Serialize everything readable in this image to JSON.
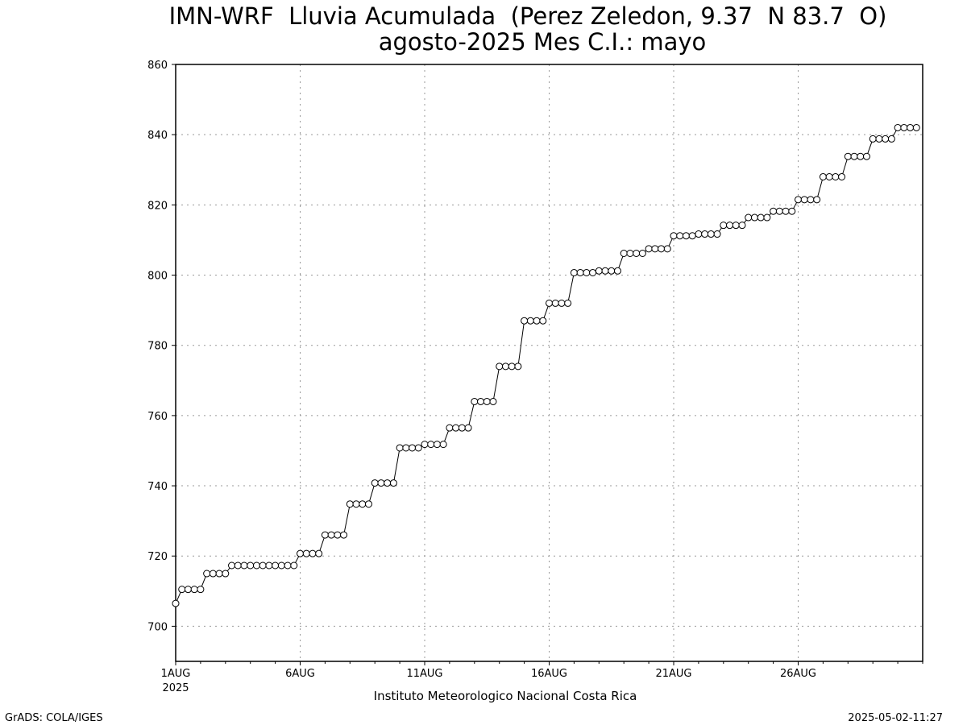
{
  "chart_data": {
    "type": "line",
    "title": "IMN-WRF  Lluvia Acumulada  (Perez Zeledon, 9.37  N 83.7  O)",
    "subtitle": "agosto-2025 Mes C.I.: mayo",
    "xlabel": "",
    "ylabel": "",
    "x_start": "1AUG2025",
    "step_hours": 6,
    "xlim_points": [
      0,
      120
    ],
    "x_ticks": [
      {
        "label": "1AUG",
        "sublabel": "2025",
        "index": 0
      },
      {
        "label": "6AUG",
        "sublabel": "",
        "index": 20
      },
      {
        "label": "11AUG",
        "sublabel": "",
        "index": 40
      },
      {
        "label": "16AUG",
        "sublabel": "",
        "index": 60
      },
      {
        "label": "21AUG",
        "sublabel": "",
        "index": 80
      },
      {
        "label": "26AUG",
        "sublabel": "",
        "index": 100
      }
    ],
    "y_ticks": [
      700,
      720,
      740,
      760,
      780,
      800,
      820,
      840,
      860
    ],
    "ylim": [
      690,
      860
    ],
    "grid": true,
    "marker": "open-circle",
    "series": [
      {
        "values": [
          706.5,
          710.5,
          710.5,
          710.5,
          710.5,
          715,
          715,
          715,
          715,
          717.3,
          717.3,
          717.3,
          717.3,
          717.3,
          717.3,
          717.3,
          717.3,
          717.3,
          717.3,
          717.3,
          720.7,
          720.7,
          720.7,
          720.7,
          726,
          726,
          726,
          726,
          734.8,
          734.8,
          734.8,
          734.8,
          740.8,
          740.8,
          740.8,
          740.8,
          750.8,
          750.8,
          750.8,
          750.8,
          751.8,
          751.8,
          751.8,
          751.8,
          756.5,
          756.5,
          756.5,
          756.5,
          764,
          764,
          764,
          764,
          774,
          774,
          774,
          774,
          787,
          787,
          787,
          787,
          792,
          792,
          792,
          792,
          800.7,
          800.7,
          800.7,
          800.7,
          801.2,
          801.2,
          801.2,
          801.2,
          806.2,
          806.2,
          806.2,
          806.2,
          807.5,
          807.5,
          807.5,
          807.5,
          811.2,
          811.2,
          811.2,
          811.2,
          811.7,
          811.7,
          811.7,
          811.7,
          814.2,
          814.2,
          814.2,
          814.2,
          816.4,
          816.4,
          816.4,
          816.4,
          818.2,
          818.2,
          818.2,
          818.2,
          821.5,
          821.5,
          821.5,
          821.5,
          828,
          828,
          828,
          828,
          833.8,
          833.8,
          833.8,
          833.8,
          838.8,
          838.8,
          838.8,
          838.8,
          842,
          842,
          842,
          842
        ]
      }
    ]
  },
  "footer": {
    "institution": "Instituto Meteorologico Nacional Costa Rica",
    "software": "GrADS: COLA/IGES",
    "timestamp": "2025-05-02-11:27"
  }
}
